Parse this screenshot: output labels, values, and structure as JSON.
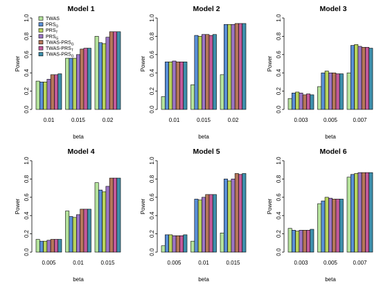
{
  "chart_data": [
    {
      "type": "bar",
      "title": "Model 1",
      "xlabel": "beta",
      "ylabel": "Power",
      "ylim": [
        0,
        1.0
      ],
      "yticks": [
        "0.0",
        "0.2",
        "0.4",
        "0.6",
        "0.8",
        "1.0"
      ],
      "categories": [
        "0.01",
        "0.015",
        "0.02"
      ],
      "series": [
        {
          "name": "TWAS",
          "values": [
            0.31,
            0.56,
            0.8
          ]
        },
        {
          "name": "PRSG",
          "values": [
            0.3,
            0.56,
            0.73
          ]
        },
        {
          "name": "PRST",
          "values": [
            0.3,
            0.56,
            0.72
          ]
        },
        {
          "name": "PRSG",
          "values": [
            0.33,
            0.6,
            0.79
          ]
        },
        {
          "name": "TWAS-PRSG",
          "values": [
            0.38,
            0.66,
            0.85
          ]
        },
        {
          "name": "TWAS-PRST",
          "values": [
            0.38,
            0.67,
            0.85
          ]
        },
        {
          "name": "TWAS-PRSG",
          "values": [
            0.39,
            0.67,
            0.85
          ]
        }
      ]
    },
    {
      "type": "bar",
      "title": "Model 2",
      "xlabel": "beta",
      "ylabel": "Power",
      "ylim": [
        0,
        1.0
      ],
      "yticks": [
        "0.0",
        "0.2",
        "0.4",
        "0.6",
        "0.8",
        "1.0"
      ],
      "categories": [
        "0.01",
        "0.015",
        "0.02"
      ],
      "series": [
        {
          "name": "TWAS",
          "values": [
            0.14,
            0.27,
            0.38
          ]
        },
        {
          "name": "PRSG",
          "values": [
            0.52,
            0.81,
            0.93
          ]
        },
        {
          "name": "PRST",
          "values": [
            0.52,
            0.8,
            0.93
          ]
        },
        {
          "name": "PRSG",
          "values": [
            0.53,
            0.82,
            0.93
          ]
        },
        {
          "name": "TWAS-PRSG",
          "values": [
            0.52,
            0.82,
            0.94
          ]
        },
        {
          "name": "TWAS-PRST",
          "values": [
            0.52,
            0.81,
            0.94
          ]
        },
        {
          "name": "TWAS-PRSG",
          "values": [
            0.52,
            0.82,
            0.94
          ]
        }
      ]
    },
    {
      "type": "bar",
      "title": "Model 3",
      "xlabel": "beta",
      "ylabel": "Power",
      "ylim": [
        0,
        1.0
      ],
      "yticks": [
        "0.0",
        "0.2",
        "0.4",
        "0.6",
        "0.8",
        "1.0"
      ],
      "categories": [
        "0.003",
        "0.005",
        "0.007"
      ],
      "series": [
        {
          "name": "TWAS",
          "values": [
            0.12,
            0.25,
            0.4
          ]
        },
        {
          "name": "PRSG",
          "values": [
            0.18,
            0.4,
            0.7
          ]
        },
        {
          "name": "PRST",
          "values": [
            0.19,
            0.42,
            0.71
          ]
        },
        {
          "name": "PRSG",
          "values": [
            0.18,
            0.4,
            0.69
          ]
        },
        {
          "name": "TWAS-PRSG",
          "values": [
            0.16,
            0.4,
            0.68
          ]
        },
        {
          "name": "TWAS-PRST",
          "values": [
            0.17,
            0.39,
            0.68
          ]
        },
        {
          "name": "TWAS-PRSG",
          "values": [
            0.16,
            0.39,
            0.67
          ]
        }
      ]
    },
    {
      "type": "bar",
      "title": "Model 4",
      "xlabel": "beta",
      "ylabel": "Power",
      "ylim": [
        0,
        1.0
      ],
      "yticks": [
        "0.0",
        "0.2",
        "0.4",
        "0.6",
        "0.8",
        "1.0"
      ],
      "categories": [
        "0.005",
        "0.01",
        "0.015"
      ],
      "series": [
        {
          "name": "TWAS",
          "values": [
            0.14,
            0.45,
            0.76
          ]
        },
        {
          "name": "PRSG",
          "values": [
            0.12,
            0.39,
            0.68
          ]
        },
        {
          "name": "PRST",
          "values": [
            0.12,
            0.38,
            0.66
          ]
        },
        {
          "name": "PRSG",
          "values": [
            0.13,
            0.41,
            0.72
          ]
        },
        {
          "name": "TWAS-PRSG",
          "values": [
            0.14,
            0.47,
            0.81
          ]
        },
        {
          "name": "TWAS-PRST",
          "values": [
            0.14,
            0.47,
            0.81
          ]
        },
        {
          "name": "TWAS-PRSG",
          "values": [
            0.14,
            0.47,
            0.81
          ]
        }
      ]
    },
    {
      "type": "bar",
      "title": "Model 5",
      "xlabel": "beta",
      "ylabel": "Power",
      "ylim": [
        0,
        1.0
      ],
      "yticks": [
        "0.0",
        "0.2",
        "0.4",
        "0.6",
        "0.8",
        "1.0"
      ],
      "categories": [
        "0.005",
        "0.01",
        "0.015"
      ],
      "series": [
        {
          "name": "TWAS",
          "values": [
            0.07,
            0.12,
            0.21
          ]
        },
        {
          "name": "PRSG",
          "values": [
            0.19,
            0.58,
            0.8
          ]
        },
        {
          "name": "PRST",
          "values": [
            0.19,
            0.57,
            0.78
          ]
        },
        {
          "name": "PRSG",
          "values": [
            0.18,
            0.6,
            0.8
          ]
        },
        {
          "name": "TWAS-PRSG",
          "values": [
            0.18,
            0.63,
            0.86
          ]
        },
        {
          "name": "TWAS-PRST",
          "values": [
            0.18,
            0.63,
            0.85
          ]
        },
        {
          "name": "TWAS-PRSG",
          "values": [
            0.19,
            0.63,
            0.86
          ]
        }
      ]
    },
    {
      "type": "bar",
      "title": "Model 6",
      "xlabel": "beta",
      "ylabel": "Power",
      "ylim": [
        0,
        1.0
      ],
      "yticks": [
        "0.0",
        "0.2",
        "0.4",
        "0.6",
        "0.8",
        "1.0"
      ],
      "categories": [
        "0.003",
        "0.005",
        "0.007"
      ],
      "series": [
        {
          "name": "TWAS",
          "values": [
            0.26,
            0.53,
            0.82
          ]
        },
        {
          "name": "PRSG",
          "values": [
            0.24,
            0.56,
            0.85
          ]
        },
        {
          "name": "PRST",
          "values": [
            0.23,
            0.6,
            0.86
          ]
        },
        {
          "name": "PRSG",
          "values": [
            0.24,
            0.59,
            0.87
          ]
        },
        {
          "name": "TWAS-PRSG",
          "values": [
            0.24,
            0.58,
            0.87
          ]
        },
        {
          "name": "TWAS-PRST",
          "values": [
            0.24,
            0.58,
            0.87
          ]
        },
        {
          "name": "TWAS-PRSG",
          "values": [
            0.25,
            0.58,
            0.87
          ]
        }
      ]
    }
  ],
  "legend": {
    "panel": "Model 1",
    "placement": "top-left",
    "items": [
      {
        "text": "TWAS",
        "sub": ""
      },
      {
        "text": "PRS",
        "sub": "G"
      },
      {
        "text": "PRS",
        "sub": "T"
      },
      {
        "text": "PRS",
        "sub": "G"
      },
      {
        "text": "TWAS-PRS",
        "sub": "G"
      },
      {
        "text": "TWAS-PRS",
        "sub": "T"
      },
      {
        "text": "TWAS-PRS",
        "sub": "G"
      }
    ]
  },
  "colors": [
    "#b5e39c",
    "#5a8fd6",
    "#b8d45c",
    "#9b74c4",
    "#b5775a",
    "#c25a9a",
    "#3e8fab"
  ]
}
